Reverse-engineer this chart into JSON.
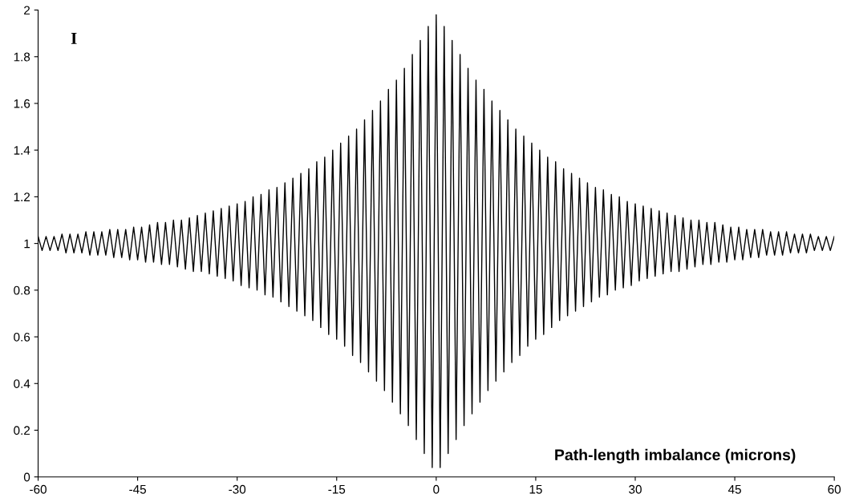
{
  "chart_data": {
    "type": "line",
    "xlabel": "Path-length imbalance (microns)",
    "ylabel": "I",
    "xlim": [
      -60,
      60
    ],
    "ylim": [
      0,
      2
    ],
    "xticks": [
      -60,
      -45,
      -30,
      -15,
      0,
      15,
      30,
      45,
      60
    ],
    "yticks": [
      0,
      0.2,
      0.4,
      0.6,
      0.8,
      1,
      1.2,
      1.4,
      1.6,
      1.8,
      2
    ],
    "grid": false,
    "legend": false,
    "marker": "none",
    "line_style": "solid",
    "series": [
      {
        "color": "#000000",
        "x": [
          -60,
          -59.4,
          -58.8,
          -58.2,
          -57.6,
          -57,
          -56.4,
          -55.8,
          -55.2,
          -54.6,
          -54,
          -53.4,
          -52.8,
          -52.2,
          -51.6,
          -51,
          -50.4,
          -49.8,
          -49.2,
          -48.6,
          -48,
          -47.4,
          -46.8,
          -46.2,
          -45.6,
          -45,
          -44.4,
          -43.8,
          -43.2,
          -42.6,
          -42,
          -41.4,
          -40.8,
          -40.2,
          -39.6,
          -39,
          -38.4,
          -37.8,
          -37.2,
          -36.6,
          -36,
          -35.4,
          -34.8,
          -34.2,
          -33.6,
          -33,
          -32.4,
          -31.8,
          -31.2,
          -30.6,
          -30,
          -29.4,
          -28.8,
          -28.2,
          -27.6,
          -27,
          -26.4,
          -25.8,
          -25.2,
          -24.6,
          -24,
          -23.4,
          -22.8,
          -22.2,
          -21.6,
          -21,
          -20.4,
          -19.8,
          -19.2,
          -18.6,
          -18,
          -17.4,
          -16.8,
          -16.2,
          -15.6,
          -15,
          -14.4,
          -13.8,
          -13.2,
          -12.6,
          -12,
          -11.4,
          -10.8,
          -10.2,
          -9.6,
          -9,
          -8.4,
          -7.8,
          -7.2,
          -6.6,
          -6,
          -5.4,
          -4.8,
          -4.2,
          -3.6,
          -3,
          -2.4,
          -1.8,
          -1.2,
          -0.6,
          0,
          0.6,
          1.2,
          1.8,
          2.4,
          3,
          3.6,
          4.2,
          4.8,
          5.4,
          6,
          6.6,
          7.2,
          7.8,
          8.4,
          9,
          9.6,
          10.2,
          10.8,
          11.4,
          12,
          12.6,
          13.2,
          13.8,
          14.4,
          15,
          15.6,
          16.2,
          16.8,
          17.4,
          18,
          18.6,
          19.2,
          19.8,
          20.4,
          21,
          21.6,
          22.2,
          22.8,
          23.4,
          24,
          24.6,
          25.2,
          25.8,
          26.4,
          27,
          27.6,
          28.2,
          28.8,
          29.4,
          30,
          30.6,
          31.2,
          31.8,
          32.4,
          33,
          33.6,
          34.2,
          34.8,
          35.4,
          36,
          36.6,
          37.2,
          37.8,
          38.4,
          39,
          39.6,
          40.2,
          40.8,
          41.4,
          42,
          42.6,
          43.2,
          43.8,
          44.4,
          45,
          45.6,
          46.2,
          46.8,
          47.4,
          48,
          48.6,
          49.2,
          49.8,
          50.4,
          51,
          51.6,
          52.2,
          52.8,
          53.4,
          54,
          54.6,
          55.2,
          55.8,
          56.4,
          57,
          57.6,
          58.2,
          58.8,
          59.4,
          60
        ],
        "values": [
          1.03,
          0.97,
          1.03,
          0.97,
          1.03,
          0.97,
          1.04,
          0.96,
          1.04,
          0.96,
          1.04,
          0.96,
          1.05,
          0.95,
          1.05,
          0.95,
          1.05,
          0.95,
          1.06,
          0.94,
          1.06,
          0.94,
          1.06,
          0.93,
          1.07,
          0.93,
          1.07,
          0.92,
          1.08,
          0.92,
          1.09,
          0.91,
          1.09,
          0.91,
          1.1,
          0.9,
          1.1,
          0.89,
          1.11,
          0.88,
          1.12,
          0.88,
          1.13,
          0.87,
          1.14,
          0.86,
          1.15,
          0.85,
          1.16,
          0.84,
          1.17,
          0.82,
          1.18,
          0.81,
          1.2,
          0.8,
          1.21,
          0.78,
          1.23,
          0.77,
          1.24,
          0.75,
          1.26,
          0.73,
          1.28,
          0.71,
          1.3,
          0.69,
          1.32,
          0.67,
          1.35,
          0.64,
          1.37,
          0.61,
          1.4,
          0.59,
          1.43,
          0.56,
          1.46,
          0.52,
          1.49,
          0.49,
          1.53,
          0.45,
          1.57,
          0.41,
          1.61,
          0.37,
          1.66,
          0.32,
          1.7,
          0.27,
          1.75,
          0.22,
          1.81,
          0.16,
          1.87,
          0.1,
          1.93,
          0.04,
          1.98,
          0.04,
          1.93,
          0.1,
          1.87,
          0.16,
          1.81,
          0.22,
          1.75,
          0.27,
          1.7,
          0.32,
          1.66,
          0.37,
          1.61,
          0.41,
          1.57,
          0.45,
          1.53,
          0.49,
          1.49,
          0.52,
          1.46,
          0.56,
          1.43,
          0.59,
          1.4,
          0.61,
          1.37,
          0.64,
          1.35,
          0.67,
          1.32,
          0.69,
          1.3,
          0.71,
          1.28,
          0.73,
          1.26,
          0.75,
          1.24,
          0.77,
          1.23,
          0.78,
          1.21,
          0.8,
          1.2,
          0.81,
          1.18,
          0.82,
          1.17,
          0.84,
          1.16,
          0.85,
          1.15,
          0.86,
          1.14,
          0.87,
          1.13,
          0.88,
          1.12,
          0.88,
          1.11,
          0.89,
          1.1,
          0.9,
          1.1,
          0.91,
          1.09,
          0.91,
          1.09,
          0.92,
          1.08,
          0.92,
          1.07,
          0.93,
          1.07,
          0.93,
          1.06,
          0.94,
          1.06,
          0.94,
          1.06,
          0.95,
          1.05,
          0.95,
          1.05,
          0.95,
          1.05,
          0.96,
          1.04,
          0.96,
          1.04,
          0.96,
          1.04,
          0.97,
          1.03,
          0.97,
          1.03,
          0.97,
          1.03
        ]
      }
    ]
  }
}
